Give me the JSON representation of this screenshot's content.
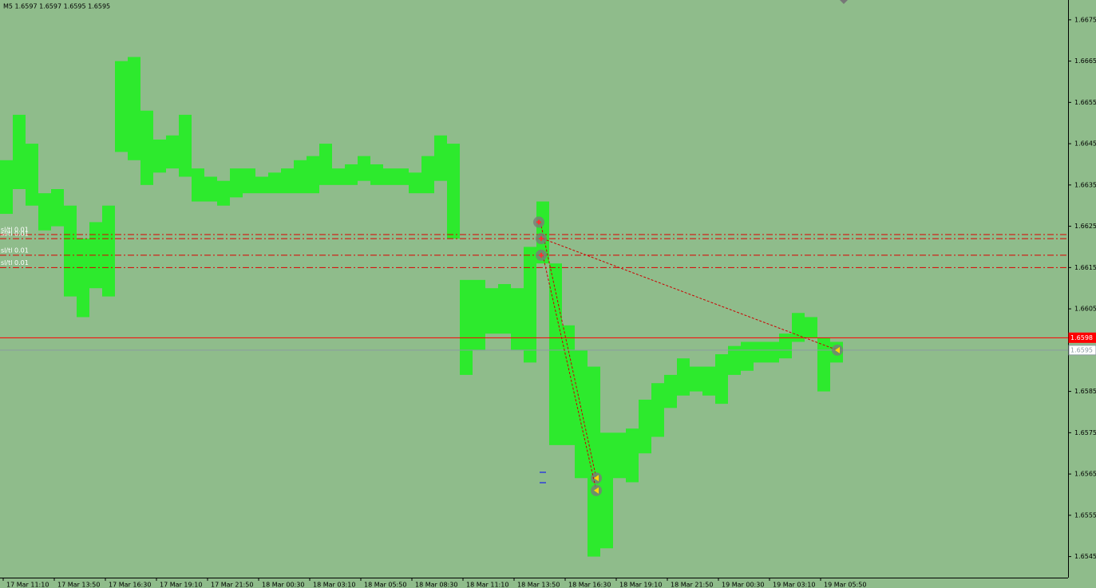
{
  "chart_data": {
    "type": "range-bar",
    "title": "M5  1.6597 1.6597 1.6595 1.6595",
    "categories": [
      "17 Mar 11:10",
      "17 Mar 13:50",
      "17 Mar 16:30",
      "17 Mar 19:10",
      "17 Mar 21:50",
      "18 Mar 00:30",
      "18 Mar 03:10",
      "18 Mar 05:50",
      "18 Mar 08:30",
      "18 Mar 11:10",
      "18 Mar 13:50",
      "18 Mar 16:30",
      "18 Mar 19:10",
      "18 Mar 21:50",
      "19 Mar 00:30",
      "19 Mar 03:10",
      "19 Mar 05:50"
    ],
    "color": "#22ee22",
    "high": [
      1.6641,
      1.6652,
      1.6645,
      1.6633,
      1.6634,
      1.663,
      1.6622,
      1.6626,
      1.663,
      1.6665,
      1.6666,
      1.6653,
      1.6646,
      1.6647,
      1.6652,
      1.6639,
      1.6637,
      1.6636,
      1.6639,
      1.6639,
      1.6637,
      1.6638,
      1.6639,
      1.6641,
      1.6642,
      1.6645,
      1.6639,
      1.664,
      1.6642,
      1.664,
      1.6639,
      1.6639,
      1.6638,
      1.6642,
      1.6647,
      1.6645,
      1.6612,
      1.6612,
      1.661,
      1.6611,
      1.661,
      1.662,
      1.6631,
      1.6616,
      1.6601,
      1.6595,
      1.6591,
      1.6575,
      1.6575,
      1.6576,
      1.6583,
      1.6587,
      1.6589,
      1.6593,
      1.6591,
      1.6591,
      1.6594,
      1.6596,
      1.6597,
      1.6597,
      1.6597,
      1.6599,
      1.6604,
      1.6603,
      1.6598,
      1.6597
    ],
    "low": [
      1.6628,
      1.6634,
      1.663,
      1.6624,
      1.6625,
      1.6608,
      1.6603,
      1.661,
      1.6608,
      1.6643,
      1.6641,
      1.6635,
      1.6638,
      1.6639,
      1.6637,
      1.6631,
      1.6631,
      1.663,
      1.6632,
      1.6633,
      1.6633,
      1.6633,
      1.6633,
      1.6633,
      1.6633,
      1.6635,
      1.6635,
      1.6635,
      1.6636,
      1.6635,
      1.6635,
      1.6635,
      1.6633,
      1.6633,
      1.6636,
      1.6622,
      1.6589,
      1.6595,
      1.6599,
      1.6599,
      1.6595,
      1.6592,
      1.6616,
      1.6572,
      1.6572,
      1.6564,
      1.6545,
      1.6547,
      1.6564,
      1.6563,
      1.657,
      1.6574,
      1.6581,
      1.6584,
      1.6585,
      1.6584,
      1.6582,
      1.6589,
      1.659,
      1.6592,
      1.6592,
      1.6593,
      1.6597,
      1.6598,
      1.6585,
      1.6592
    ],
    "ylim": [
      1.65399,
      1.66798
    ],
    "yticks": [
      1.6675,
      1.6665,
      1.6655,
      1.6645,
      1.6635,
      1.6625,
      1.6615,
      1.6605,
      1.6585,
      1.6575,
      1.6565,
      1.6555,
      1.6545
    ],
    "ask": {
      "value": 1.6598,
      "label": "1.6598",
      "color": "#ff0000"
    },
    "bid": {
      "value": 1.6595,
      "label": "1.6595",
      "color": "#8a9aa0"
    },
    "levels": [
      {
        "value": 1.6623,
        "label": "sl/tl 0.01"
      },
      {
        "value": 1.6622,
        "label": "sl/tl 0.01"
      },
      {
        "value": 1.6618,
        "label": "sl/tl 0.01"
      },
      {
        "value": 1.6615,
        "label": "sl/tl 0.01"
      }
    ],
    "trades": [
      {
        "open": 1.6626,
        "close": 1.6564
      },
      {
        "open": 1.6622,
        "close": 1.6595
      },
      {
        "open": 1.6618,
        "close": 1.6561
      }
    ]
  }
}
